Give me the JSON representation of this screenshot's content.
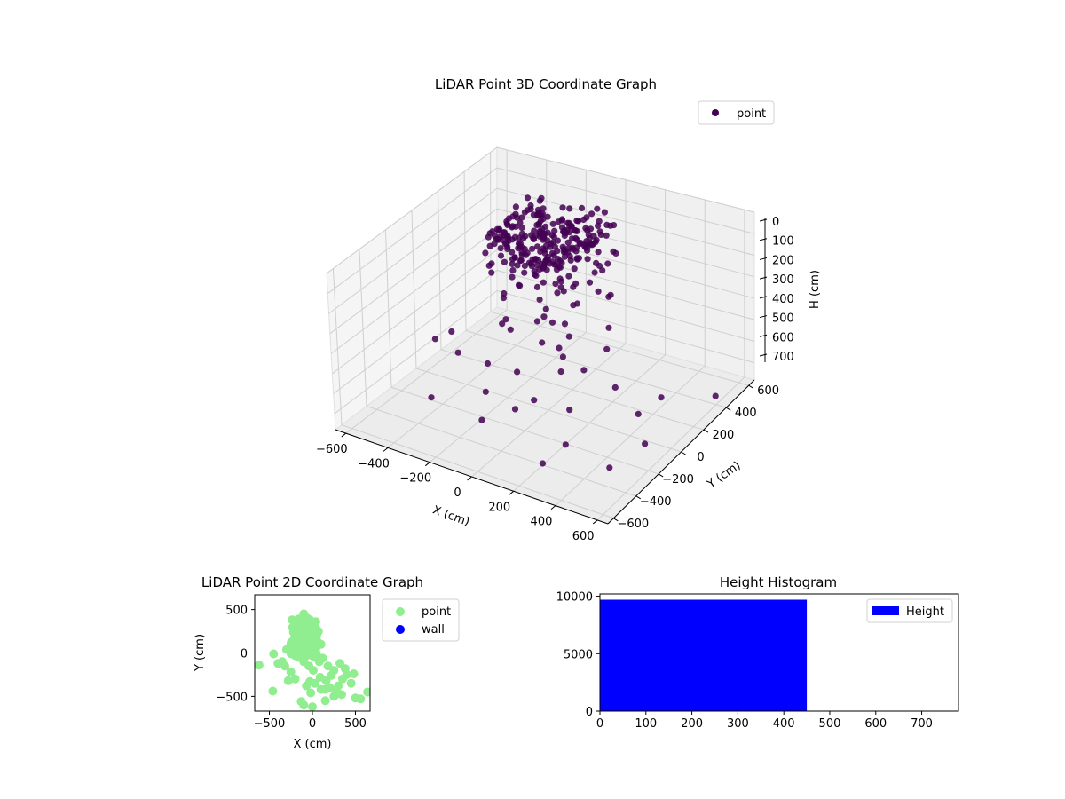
{
  "chart_data": [
    {
      "type": "scatter3d",
      "title": "LiDAR Point 3D Coordinate Graph",
      "xlabel": "X (cm)",
      "ylabel": "Y (cm)",
      "zlabel": "H (cm)",
      "x_ticks": [
        "−600",
        "−400",
        "−200",
        "0",
        "200",
        "400",
        "600"
      ],
      "y_ticks": [
        "−600",
        "−400",
        "−200",
        "0",
        "200",
        "400",
        "600"
      ],
      "z_ticks": [
        "0",
        "100",
        "200",
        "300",
        "400",
        "500",
        "600",
        "700"
      ],
      "xlim": [
        -650,
        650
      ],
      "ylim": [
        -650,
        650
      ],
      "zlim": [
        0,
        780
      ],
      "z_inverted": true,
      "legend": {
        "label": "point",
        "placement": "top-right"
      },
      "marker_color": "#440154",
      "cluster": {
        "x_range": [
          -300,
          100
        ],
        "y_range": [
          -100,
          400
        ],
        "h_range": [
          0,
          200
        ]
      },
      "outlier_points": [
        [
          -400,
          300,
          600
        ],
        [
          -300,
          100,
          500
        ],
        [
          -200,
          0,
          450
        ],
        [
          -100,
          100,
          400
        ],
        [
          0,
          200,
          350
        ],
        [
          -500,
          -100,
          550
        ],
        [
          -600,
          200,
          680
        ],
        [
          -400,
          -300,
          700
        ],
        [
          -200,
          -200,
          650
        ],
        [
          0,
          -300,
          620
        ],
        [
          200,
          -200,
          600
        ],
        [
          300,
          -400,
          640
        ],
        [
          100,
          -100,
          500
        ],
        [
          -100,
          300,
          300
        ],
        [
          -300,
          400,
          380
        ],
        [
          -500,
          450,
          600
        ],
        [
          400,
          200,
          650
        ],
        [
          500,
          -100,
          700
        ],
        [
          600,
          300,
          620
        ],
        [
          200,
          100,
          450
        ],
        [
          300,
          0,
          550
        ],
        [
          100,
          300,
          320
        ],
        [
          -100,
          -400,
          660
        ],
        [
          250,
          -500,
          700
        ],
        [
          0,
          100,
          400
        ],
        [
          -50,
          0,
          460
        ],
        [
          50,
          50,
          420
        ],
        [
          -150,
          150,
          360
        ],
        [
          150,
          0,
          520
        ],
        [
          -250,
          -100,
          580
        ],
        [
          -350,
          200,
          420
        ],
        [
          350,
          100,
          700
        ],
        [
          -450,
          0,
          640
        ],
        [
          450,
          -300,
          740
        ],
        [
          120,
          250,
          300
        ],
        [
          -80,
          -150,
          540
        ],
        [
          60,
          -250,
          580
        ],
        [
          -20,
          200,
          280
        ],
        [
          180,
          150,
          380
        ],
        [
          -220,
          300,
          300
        ],
        [
          0,
          0,
          350
        ],
        [
          40,
          100,
          300
        ],
        [
          -60,
          50,
          330
        ],
        [
          80,
          -50,
          460
        ],
        [
          -120,
          80,
          420
        ],
        [
          20,
          20,
          470
        ],
        [
          -30,
          120,
          250
        ],
        [
          100,
          200,
          260
        ],
        [
          -160,
          250,
          240
        ],
        [
          60,
          300,
          220
        ]
      ]
    },
    {
      "type": "scatter",
      "title": "LiDAR Point 2D Coordinate Graph",
      "xlabel": "X (cm)",
      "ylabel": "Y (cm)",
      "x_ticks": [
        "−500",
        "0",
        "500"
      ],
      "y_ticks": [
        "−500",
        "0",
        "500"
      ],
      "xlim": [
        -670,
        670
      ],
      "ylim": [
        -670,
        670
      ],
      "legend_placement": "outside-right",
      "series": [
        {
          "name": "point",
          "color": "#90ee90",
          "points": [
            [
              -620,
              -140
            ],
            [
              -450,
              -10
            ],
            [
              -460,
              -440
            ],
            [
              -320,
              -150
            ],
            [
              -280,
              -320
            ],
            [
              -300,
              40
            ],
            [
              -250,
              100
            ],
            [
              -200,
              200
            ],
            [
              -150,
              300
            ],
            [
              -100,
              450
            ],
            [
              -50,
              380
            ],
            [
              0,
              300
            ],
            [
              50,
              200
            ],
            [
              100,
              100
            ],
            [
              80,
              -100
            ],
            [
              0,
              -620
            ],
            [
              -100,
              -600
            ],
            [
              -130,
              -560
            ],
            [
              150,
              -550
            ],
            [
              250,
              -500
            ],
            [
              300,
              -380
            ],
            [
              350,
              -300
            ],
            [
              400,
              -250
            ],
            [
              480,
              -240
            ],
            [
              500,
              -520
            ],
            [
              560,
              -530
            ],
            [
              640,
              -450
            ],
            [
              200,
              -400
            ],
            [
              100,
              -420
            ],
            [
              30,
              -350
            ],
            [
              -30,
              -330
            ],
            [
              -200,
              -300
            ],
            [
              -250,
              -220
            ],
            [
              -350,
              -100
            ],
            [
              -400,
              -120
            ],
            [
              -180,
              0
            ],
            [
              -150,
              100
            ],
            [
              -120,
              250
            ],
            [
              -80,
              150
            ],
            [
              -40,
              50
            ],
            [
              0,
              0
            ],
            [
              40,
              -50
            ],
            [
              120,
              -60
            ],
            [
              180,
              -150
            ],
            [
              250,
              -200
            ],
            [
              320,
              -120
            ],
            [
              380,
              -180
            ],
            [
              450,
              -350
            ],
            [
              -60,
              400
            ],
            [
              20,
              350
            ],
            [
              70,
              250
            ],
            [
              -200,
              120
            ],
            [
              -230,
              30
            ],
            [
              -160,
              -50
            ],
            [
              -100,
              -100
            ],
            [
              -40,
              -150
            ],
            [
              10,
              -200
            ],
            [
              90,
              -280
            ],
            [
              160,
              -320
            ],
            [
              220,
              -260
            ],
            [
              280,
              -440
            ],
            [
              340,
              -480
            ],
            [
              -20,
              -460
            ],
            [
              -70,
              -380
            ],
            [
              150,
              -420
            ],
            [
              -130,
              330
            ],
            [
              -90,
              270
            ],
            [
              -10,
              180
            ],
            [
              60,
              130
            ],
            [
              -170,
              200
            ],
            [
              -120,
              50
            ],
            [
              -60,
              20
            ]
          ]
        },
        {
          "name": "wall",
          "color": "#0000ff",
          "points": []
        }
      ]
    },
    {
      "type": "bar",
      "title": "Height Histogram",
      "x_ticks": [
        "0",
        "100",
        "200",
        "300",
        "400",
        "500",
        "600",
        "700"
      ],
      "y_ticks": [
        "0",
        "5000",
        "10000"
      ],
      "xlim": [
        0,
        780
      ],
      "ylim": [
        0,
        10200
      ],
      "legend": {
        "label": "Height",
        "placement": "top-right"
      },
      "color": "#0000ff",
      "bins": [
        {
          "x0": 0,
          "x1": 450,
          "count": 9700
        },
        {
          "x0": 450,
          "x1": 780,
          "count": 40
        }
      ]
    }
  ]
}
